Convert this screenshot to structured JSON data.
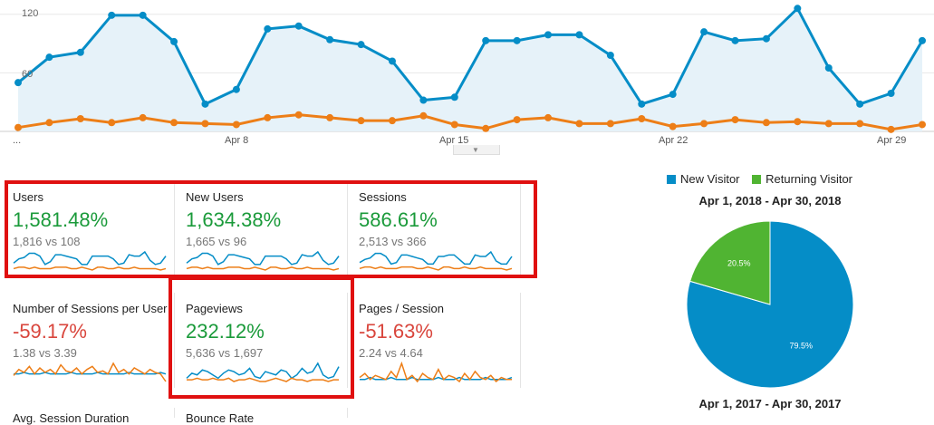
{
  "colors": {
    "blue": "#058dc7",
    "orange": "#ed7e17",
    "green": "#50b432",
    "positive": "#1a9a3a",
    "negative": "#d9463d",
    "highlight": "#e01010"
  },
  "chart_data": [
    {
      "type": "line",
      "y_ticks": [
        "120",
        "60"
      ],
      "ylim": [
        0,
        130
      ],
      "x_tick_labels": [
        "...",
        "Apr 8",
        "Apr 15",
        "Apr 22",
        "Apr 29"
      ],
      "x": [
        1,
        2,
        3,
        4,
        5,
        6,
        7,
        8,
        9,
        10,
        11,
        12,
        13,
        14,
        15,
        16,
        17,
        18,
        19,
        20,
        21,
        22,
        23,
        24,
        25,
        26,
        27,
        28,
        29,
        30
      ],
      "series": [
        {
          "color": "#058dc7",
          "fill": "#e6f2f9",
          "values": [
            50,
            76,
            81,
            119,
            119,
            92,
            28,
            43,
            105,
            108,
            94,
            89,
            72,
            32,
            35,
            93,
            93,
            99,
            99,
            78,
            28,
            38,
            102,
            93,
            95,
            126,
            65,
            28,
            39,
            93
          ]
        },
        {
          "color": "#ed7e17",
          "values": [
            4,
            9,
            13,
            9,
            14,
            9,
            8,
            7,
            14,
            17,
            14,
            11,
            11,
            16,
            7,
            3,
            12,
            14,
            8,
            8,
            13,
            5,
            8,
            12,
            9,
            10,
            8,
            8,
            2,
            7
          ]
        }
      ],
      "grid": true
    },
    {
      "type": "pie",
      "legend": [
        "New Visitor",
        "Returning Visitor"
      ],
      "legend_position": "top",
      "titles": [
        "Apr 1, 2018 - Apr 30, 2018",
        "Apr 1, 2017 - Apr 30, 2017"
      ],
      "slices": [
        {
          "name": "New Visitor",
          "value": 79.5,
          "label": "79.5%",
          "color": "#058dc7"
        },
        {
          "name": "Returning Visitor",
          "value": 20.5,
          "label": "20.5%",
          "color": "#50b432"
        }
      ]
    }
  ],
  "metrics": [
    {
      "label": "Users",
      "pct": "1,581.48%",
      "cmp": "1,816 vs 108",
      "positive": true,
      "spark_a": [
        5,
        8,
        9,
        12,
        12,
        10,
        4,
        6,
        11,
        11,
        10,
        9,
        8,
        4,
        4,
        10,
        10,
        10,
        10,
        8,
        4,
        5,
        11,
        10,
        10,
        13,
        7,
        4,
        5,
        10
      ],
      "spark_b": [
        1,
        2,
        2,
        1,
        2,
        1,
        1,
        1,
        2,
        2,
        2,
        1,
        1,
        2,
        1,
        0,
        2,
        2,
        1,
        1,
        2,
        1,
        1,
        2,
        1,
        1,
        1,
        1,
        0,
        1
      ]
    },
    {
      "label": "New Users",
      "pct": "1,634.38%",
      "cmp": "1,665 vs 96",
      "positive": true,
      "spark_a": [
        5,
        8,
        9,
        12,
        12,
        10,
        4,
        6,
        11,
        11,
        10,
        9,
        8,
        4,
        4,
        10,
        10,
        10,
        10,
        8,
        4,
        5,
        11,
        10,
        10,
        13,
        7,
        4,
        5,
        10
      ],
      "spark_b": [
        1,
        2,
        2,
        1,
        2,
        1,
        1,
        1,
        2,
        2,
        2,
        1,
        1,
        2,
        1,
        0,
        2,
        2,
        1,
        1,
        2,
        1,
        1,
        2,
        1,
        1,
        1,
        1,
        0,
        1
      ]
    },
    {
      "label": "Sessions",
      "pct": "586.61%",
      "cmp": "2,513 vs 366",
      "positive": true,
      "spark_a": [
        6,
        8,
        9,
        12,
        12,
        10,
        5,
        6,
        11,
        11,
        10,
        9,
        8,
        5,
        5,
        10,
        10,
        11,
        11,
        8,
        5,
        5,
        11,
        10,
        10,
        13,
        7,
        5,
        5,
        10
      ],
      "spark_b": [
        2,
        3,
        3,
        2,
        3,
        2,
        2,
        2,
        3,
        3,
        3,
        2,
        2,
        3,
        2,
        1,
        3,
        3,
        2,
        2,
        3,
        2,
        2,
        3,
        2,
        2,
        2,
        2,
        1,
        2
      ]
    },
    {
      "label": "Number of Sessions per User",
      "pct": "-59.17%",
      "cmp": "1.38 vs 3.39",
      "positive": false,
      "spark_a": [
        6,
        6,
        7,
        6,
        6,
        6,
        7,
        6,
        6,
        6,
        6,
        7,
        6,
        6,
        6,
        6,
        7,
        6,
        6,
        6,
        6,
        6,
        7,
        6,
        6,
        6,
        6,
        6,
        7,
        6
      ],
      "spark_b": [
        5,
        9,
        7,
        11,
        6,
        10,
        7,
        9,
        6,
        12,
        8,
        7,
        10,
        6,
        9,
        11,
        7,
        8,
        6,
        13,
        7,
        9,
        6,
        10,
        8,
        6,
        9,
        7,
        6,
        1
      ]
    },
    {
      "label": "Pageviews",
      "pct": "232.12%",
      "cmp": "5,636 vs 1,697",
      "positive": true,
      "spark_a": [
        4,
        7,
        6,
        9,
        8,
        6,
        4,
        7,
        9,
        8,
        6,
        7,
        10,
        5,
        4,
        8,
        7,
        6,
        9,
        8,
        4,
        6,
        10,
        7,
        8,
        13,
        6,
        4,
        5,
        11
      ],
      "spark_b": [
        3,
        3,
        4,
        3,
        3,
        4,
        3,
        3,
        4,
        2,
        3,
        3,
        4,
        3,
        2,
        2,
        3,
        4,
        3,
        2,
        4,
        3,
        3,
        2,
        3,
        3,
        3,
        2,
        3,
        3
      ]
    },
    {
      "label": "Pages / Session",
      "pct": "-51.63%",
      "cmp": "2.24 vs 4.64",
      "positive": false,
      "spark_a": [
        5,
        5,
        6,
        5,
        5,
        5,
        6,
        5,
        5,
        5,
        6,
        5,
        5,
        5,
        5,
        6,
        5,
        5,
        5,
        6,
        5,
        5,
        5,
        5,
        6,
        5,
        5,
        5,
        5,
        6
      ],
      "spark_b": [
        6,
        8,
        5,
        7,
        6,
        5,
        9,
        6,
        13,
        5,
        7,
        4,
        8,
        6,
        5,
        10,
        5,
        7,
        6,
        4,
        8,
        5,
        9,
        6,
        5,
        7,
        4,
        6,
        5,
        5
      ]
    }
  ],
  "bottom_cut_labels": [
    "Avg. Session Duration",
    "Bounce Rate"
  ]
}
